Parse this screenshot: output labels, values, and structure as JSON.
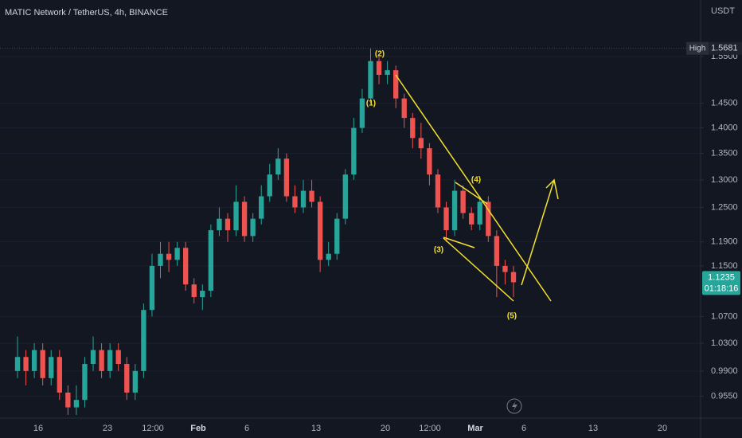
{
  "chart_data": {
    "type": "candlestick",
    "title": "MATIC Network / TetherUS, 4h, BINANCE",
    "y_unit": "USDT",
    "log": true,
    "grid": true,
    "up_color": "#26a69a",
    "down_color": "#ef5350",
    "ylim": [
      0.931,
      1.68
    ],
    "yticks": [
      {
        "value": 1.55,
        "label": "1.5500"
      },
      {
        "value": 1.45,
        "label": "1.4500"
      },
      {
        "value": 1.4,
        "label": "1.4000"
      },
      {
        "value": 1.35,
        "label": "1.3500"
      },
      {
        "value": 1.3,
        "label": "1.3000"
      },
      {
        "value": 1.25,
        "label": "1.2500"
      },
      {
        "value": 1.19,
        "label": "1.1900"
      },
      {
        "value": 1.15,
        "label": "1.1500"
      },
      {
        "value": 1.07,
        "label": "1.0700"
      },
      {
        "value": 1.03,
        "label": "1.0300"
      },
      {
        "value": 0.99,
        "label": "0.9900"
      },
      {
        "value": 0.955,
        "label": "0.9550"
      }
    ],
    "x_labels": [
      "16",
      "23",
      "12:00",
      "Feb",
      "6",
      "13",
      "20",
      "12:00",
      "Mar",
      "6",
      "13",
      "20"
    ],
    "open": [
      0.99,
      1.01,
      0.99,
      1.02,
      0.98,
      1.01,
      0.96,
      0.94,
      0.95,
      1.0,
      1.02,
      0.99,
      1.02,
      1.0,
      0.96,
      0.99,
      1.08,
      1.15,
      1.17,
      1.16,
      1.18,
      1.12,
      1.1,
      1.11,
      1.21,
      1.23,
      1.21,
      1.26,
      1.2,
      1.23,
      1.27,
      1.31,
      1.34,
      1.27,
      1.25,
      1.28,
      1.26,
      1.16,
      1.17,
      1.23,
      1.31,
      1.4,
      1.46,
      1.54,
      1.51,
      1.52,
      1.46,
      1.42,
      1.38,
      1.36,
      1.31,
      1.25,
      1.21,
      1.28,
      1.24,
      1.22,
      1.26,
      1.2,
      1.15,
      1.14
    ],
    "high": [
      1.04,
      1.02,
      1.03,
      1.03,
      1.02,
      1.02,
      0.97,
      0.97,
      1.01,
      1.04,
      1.03,
      1.03,
      1.03,
      1.01,
      1.0,
      1.09,
      1.17,
      1.19,
      1.19,
      1.19,
      1.19,
      1.13,
      1.12,
      1.22,
      1.25,
      1.24,
      1.29,
      1.27,
      1.24,
      1.29,
      1.33,
      1.36,
      1.35,
      1.29,
      1.3,
      1.3,
      1.27,
      1.19,
      1.24,
      1.32,
      1.42,
      1.48,
      1.5681,
      1.55,
      1.54,
      1.53,
      1.47,
      1.43,
      1.41,
      1.37,
      1.32,
      1.26,
      1.3,
      1.29,
      1.25,
      1.27,
      1.27,
      1.21,
      1.16,
      1.15
    ],
    "low": [
      0.98,
      0.97,
      0.98,
      0.97,
      0.97,
      0.95,
      0.93,
      0.93,
      0.94,
      0.99,
      0.98,
      0.98,
      0.99,
      0.95,
      0.95,
      0.98,
      1.07,
      1.13,
      1.14,
      1.15,
      1.11,
      1.09,
      1.08,
      1.1,
      1.2,
      1.19,
      1.2,
      1.19,
      1.19,
      1.22,
      1.26,
      1.3,
      1.26,
      1.24,
      1.24,
      1.25,
      1.14,
      1.15,
      1.16,
      1.22,
      1.3,
      1.39,
      1.45,
      1.49,
      1.49,
      1.44,
      1.4,
      1.36,
      1.34,
      1.29,
      1.24,
      1.19,
      1.2,
      1.23,
      1.21,
      1.21,
      1.19,
      1.1,
      1.12,
      1.1
    ],
    "close": [
      1.01,
      0.99,
      1.02,
      0.98,
      1.01,
      0.96,
      0.94,
      0.95,
      1.0,
      1.02,
      0.99,
      1.02,
      1.0,
      0.96,
      0.99,
      1.08,
      1.15,
      1.17,
      1.16,
      1.18,
      1.12,
      1.1,
      1.11,
      1.21,
      1.23,
      1.21,
      1.26,
      1.2,
      1.23,
      1.27,
      1.31,
      1.34,
      1.27,
      1.25,
      1.28,
      1.26,
      1.16,
      1.17,
      1.23,
      1.31,
      1.4,
      1.46,
      1.54,
      1.51,
      1.52,
      1.46,
      1.42,
      1.38,
      1.36,
      1.31,
      1.25,
      1.21,
      1.28,
      1.24,
      1.22,
      1.26,
      1.2,
      1.15,
      1.14,
      1.1235
    ],
    "high_marker": {
      "label": "High",
      "value": 1.5681
    },
    "countdown": "01:18:16",
    "annotations": [
      "(1)",
      "(2)",
      "(3)",
      "(4)",
      "(5)"
    ]
  }
}
